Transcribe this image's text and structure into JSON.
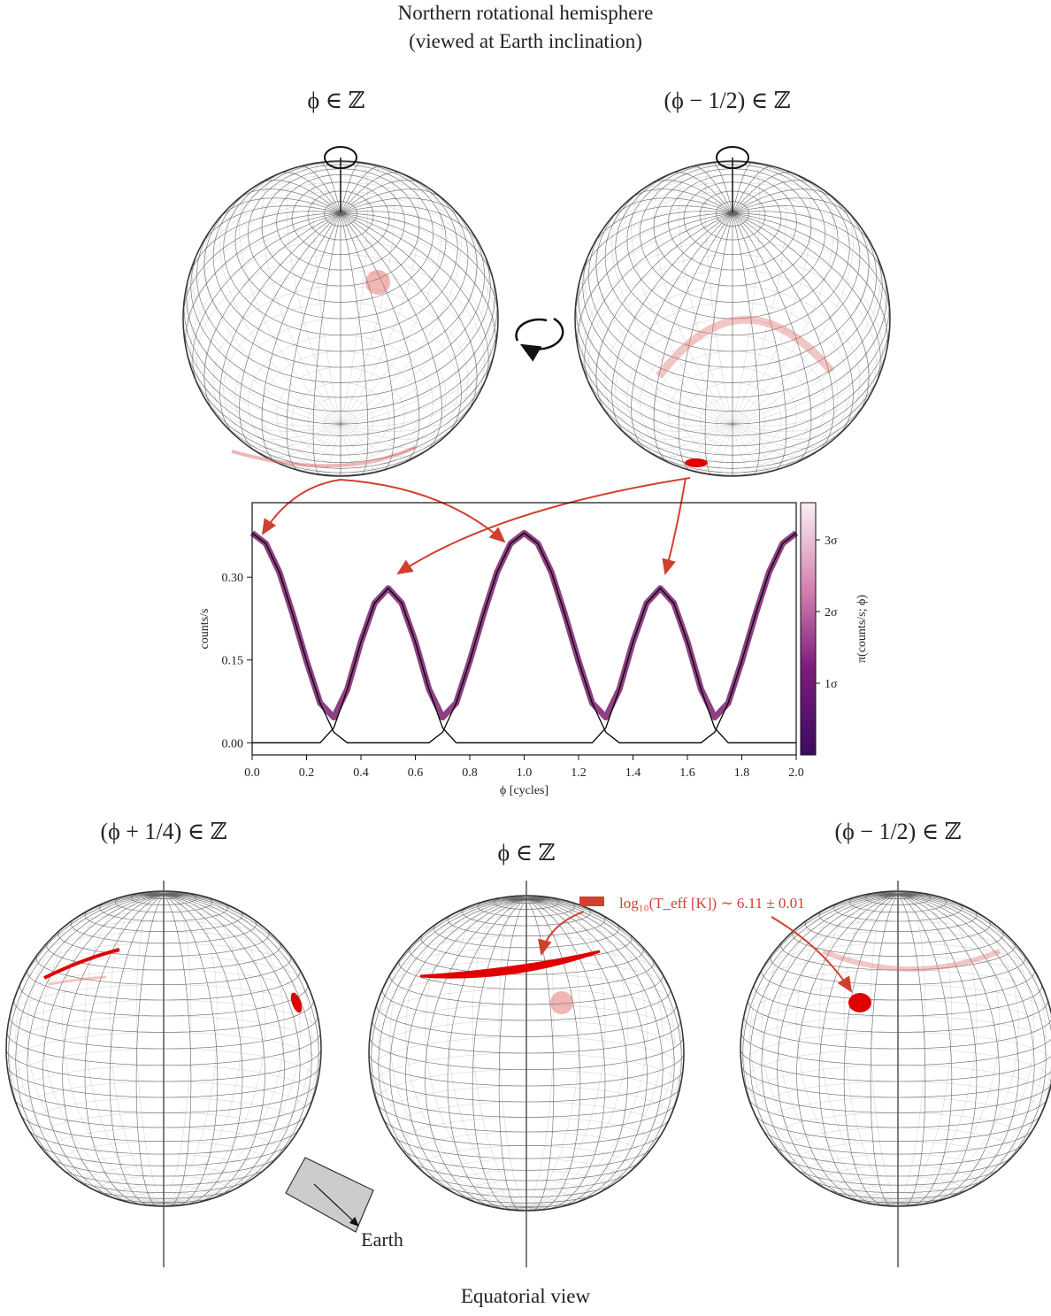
{
  "figure": {
    "title_lines": [
      "Northern rotational hemisphere",
      "(viewed at Earth inclination)"
    ],
    "top_labels": [
      "ϕ ∈ ℤ",
      "(ϕ − 1/2) ∈ ℤ"
    ],
    "bottom_labels": [
      "(ϕ + 1/4) ∈ ℤ",
      "ϕ ∈ ℤ",
      "(ϕ − 1/2) ∈ ℤ"
    ],
    "spot_label": "log₁₀(T_eff [K]) ∼ 6.11 ± 0.01",
    "earth_label": "Earth",
    "bottom_title": "Equatorial view"
  },
  "chart_data": {
    "type": "line",
    "x_label": "ϕ [cycles]",
    "y_label": "counts/s",
    "xlim": [
      0,
      2
    ],
    "ylim": [
      -0.022,
      0.435
    ],
    "xticks": [
      {
        "value": 0,
        "label": "0.0"
      },
      0.2,
      0.4,
      0.6,
      0.8,
      {
        "value": 1,
        "label": "1.0"
      },
      1.2,
      1.4,
      1.6,
      1.8,
      {
        "value": 2,
        "label": "2.0"
      }
    ],
    "yticks": [
      {
        "value": 0,
        "label": "0.00"
      },
      0.15,
      {
        "value": 0.3,
        "label": "0.30"
      }
    ],
    "x": [
      0,
      0.05,
      0.1,
      0.15,
      0.2,
      0.25,
      0.3,
      0.35,
      0.4,
      0.45,
      0.5,
      0.55,
      0.6,
      0.65,
      0.7,
      0.75,
      0.8,
      0.85,
      0.9,
      0.95,
      1,
      1.05,
      1.1,
      1.15,
      1.2,
      1.25,
      1.3,
      1.35,
      1.4,
      1.45,
      1.5,
      1.55,
      1.6,
      1.65,
      1.7,
      1.75,
      1.8,
      1.85,
      1.9,
      1.95,
      2
    ],
    "series": [
      {
        "color": "#7b1f6e",
        "values": [
          0.38,
          0.361,
          0.309,
          0.232,
          0.148,
          0.072,
          0.046,
          0.097,
          0.183,
          0.253,
          0.28,
          0.253,
          0.183,
          0.097,
          0.046,
          0.072,
          0.148,
          0.232,
          0.309,
          0.361,
          0.38,
          0.361,
          0.309,
          0.232,
          0.148,
          0.072,
          0.046,
          0.097,
          0.183,
          0.253,
          0.28,
          0.253,
          0.183,
          0.097,
          0.046,
          0.072,
          0.148,
          0.232,
          0.309,
          0.361,
          0.38
        ]
      },
      {
        "color": "#000000",
        "values": [
          0.38,
          0.361,
          0.309,
          0.232,
          0.148,
          0.072,
          0.019,
          0,
          0,
          0,
          0,
          0,
          0,
          0,
          0.019,
          0.072,
          0.148,
          0.232,
          0.309,
          0.361,
          0.38,
          0.361,
          0.309,
          0.232,
          0.148,
          0.072,
          0.019,
          0,
          0,
          0,
          0,
          0,
          0,
          0,
          0.019,
          0.072,
          0.148,
          0.232,
          0.309,
          0.361,
          0.38
        ]
      },
      {
        "color": "#000000",
        "values": [
          0,
          0,
          0,
          0,
          0,
          0,
          0.027,
          0.097,
          0.183,
          0.253,
          0.28,
          0.253,
          0.183,
          0.097,
          0.027,
          0,
          0,
          0,
          0,
          0,
          0,
          0,
          0,
          0,
          0,
          0,
          0.027,
          0.097,
          0.183,
          0.253,
          0.28,
          0.253,
          0.183,
          0.097,
          0.027,
          0,
          0,
          0,
          0,
          0,
          0
        ]
      }
    ],
    "colorbar": {
      "label": "π(counts/s; ϕ)",
      "tick_labels": [
        "1σ",
        "2σ",
        "3σ"
      ]
    }
  }
}
